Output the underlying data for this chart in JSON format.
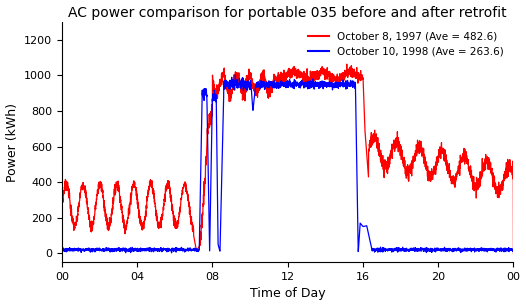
{
  "title": "AC power comparison for portable 035 before and after retrofit",
  "xlabel": "Time of Day",
  "ylabel": "Power (kWh)",
  "xtick_labels": [
    "00",
    "04",
    "08",
    "12",
    "16",
    "20",
    "00"
  ],
  "xtick_values": [
    0,
    4,
    8,
    12,
    16,
    20,
    24
  ],
  "ylim": [
    -50,
    1300
  ],
  "xlim": [
    0,
    24
  ],
  "legend": [
    {
      "label": "October 8, 1997 (Ave = 482.6)",
      "color": "red"
    },
    {
      "label": "October 10, 1998 (Ave = 263.6)",
      "color": "blue"
    }
  ],
  "background_color": "#ffffff",
  "title_fontsize": 10,
  "axis_fontsize": 9,
  "tick_fontsize": 8
}
